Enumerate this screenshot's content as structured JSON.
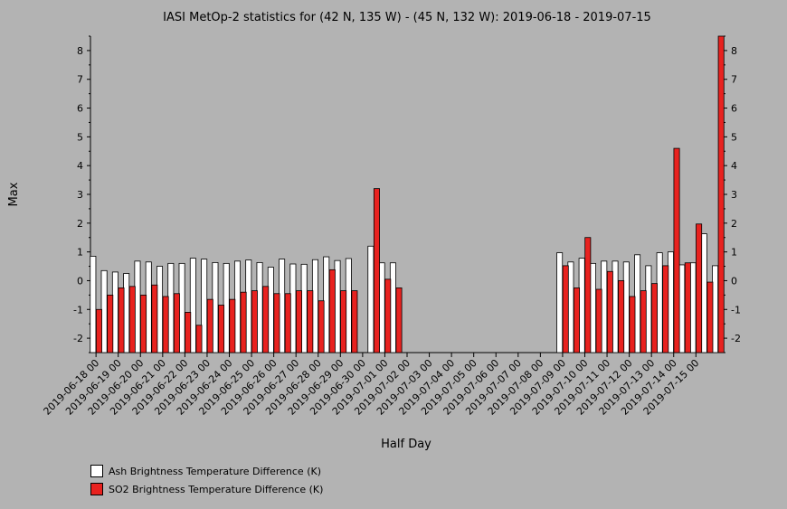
{
  "chart_data": {
    "type": "bar",
    "title": "IASI MetOp-2 statistics for (42 N, 135 W) - (45 N, 132 W): 2019-06-18 - 2019-07-15",
    "xlabel": "Half Day",
    "ylabel": "Max",
    "ylim": [
      -2.5,
      8.5
    ],
    "yticks": [
      -2,
      -1,
      0,
      1,
      2,
      3,
      4,
      5,
      6,
      7,
      8
    ],
    "xtick_labels": [
      "2019-06-18 00",
      "2019-06-19 00",
      "2019-06-20 00",
      "2019-06-21 00",
      "2019-06-22 00",
      "2019-06-23 00",
      "2019-06-24 00",
      "2019-06-25 00",
      "2019-06-26 00",
      "2019-06-27 00",
      "2019-06-28 00",
      "2019-06-29 00",
      "2019-06-30 00",
      "2019-07-01 00",
      "2019-07-02 00",
      "2019-07-03 00",
      "2019-07-04 00",
      "2019-07-05 00",
      "2019-07-06 00",
      "2019-07-07 00",
      "2019-07-08 00",
      "2019-07-09 00",
      "2019-07-10 00",
      "2019-07-11 00",
      "2019-07-12 00",
      "2019-07-13 00",
      "2019-07-14 00",
      "2019-07-15 00"
    ],
    "series": [
      {
        "name": "Ash Brightness Temperature Difference (K)",
        "color": "#ffffff",
        "values": [
          0.85,
          0.35,
          0.3,
          0.25,
          0.68,
          0.65,
          0.5,
          0.6,
          0.6,
          0.78,
          0.75,
          0.63,
          0.6,
          0.68,
          0.72,
          0.63,
          0.47,
          0.75,
          0.58,
          0.57,
          0.73,
          0.83,
          0.7,
          0.77,
          null,
          1.2,
          0.62,
          0.62,
          null,
          null,
          null,
          null,
          null,
          null,
          null,
          null,
          null,
          null,
          null,
          null,
          null,
          null,
          0.97,
          0.65,
          0.78,
          0.6,
          0.68,
          0.68,
          0.65,
          0.9,
          0.52,
          0.97,
          1.0,
          0.55,
          0.62,
          1.63,
          0.52
        ]
      },
      {
        "name": "SO2 Brightness Temperature Difference (K)",
        "color": "#e8221f",
        "values": [
          -1.0,
          -0.5,
          -0.25,
          -0.2,
          -0.5,
          -0.15,
          -0.55,
          -0.45,
          -1.1,
          -1.55,
          -0.65,
          -0.85,
          -0.65,
          -0.4,
          -0.35,
          -0.2,
          -0.45,
          -0.45,
          -0.35,
          -0.35,
          -0.7,
          0.38,
          -0.35,
          -0.35,
          null,
          3.2,
          0.05,
          -0.25,
          null,
          null,
          null,
          null,
          null,
          null,
          null,
          null,
          null,
          null,
          null,
          null,
          null,
          null,
          0.52,
          -0.25,
          1.5,
          -0.3,
          0.32,
          0.0,
          -0.55,
          -0.35,
          -0.1,
          0.52,
          4.6,
          0.62,
          1.97,
          -0.05,
          8.5
        ]
      }
    ],
    "legend_position": "bottom-left",
    "grid": false
  }
}
